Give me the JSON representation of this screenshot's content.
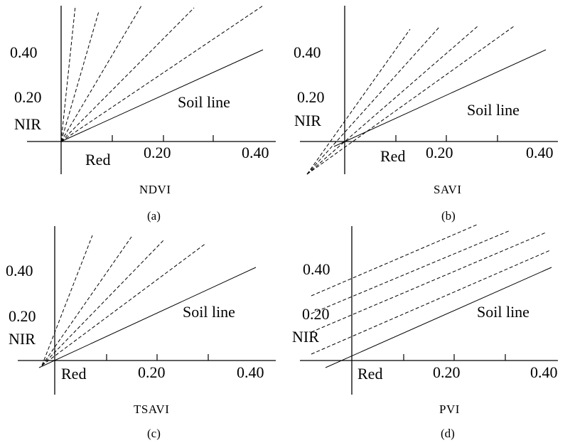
{
  "panels": [
    {
      "id": "a",
      "caption": "(a)",
      "name": "NDVI",
      "x_axis_label": "Red",
      "y_axis_label": "NIR",
      "soil_line_label": "Soil line",
      "x_ticks": [
        "0.20",
        "0.40"
      ],
      "y_ticks": [
        "0.40",
        "0.20"
      ],
      "isolines": "converge at origin"
    },
    {
      "id": "b",
      "caption": "(b)",
      "name": "SAVI",
      "x_axis_label": "Red",
      "y_axis_label": "NIR",
      "soil_line_label": "Soil line",
      "x_ticks": [
        "0.20",
        "0.40"
      ],
      "y_ticks": [
        "0.40",
        "0.20"
      ],
      "isolines": "converge below origin"
    },
    {
      "id": "c",
      "caption": "(c)",
      "name": "TSAVI",
      "x_axis_label": "Red",
      "y_axis_label": "NIR",
      "soil_line_label": "Soil line",
      "x_ticks": [
        "0.20",
        "0.40"
      ],
      "y_ticks": [
        "0.40",
        "0.20"
      ],
      "isolines": "converge on soil line"
    },
    {
      "id": "d",
      "caption": "(d)",
      "name": "PVI",
      "x_axis_label": "Red",
      "y_axis_label": "NIR",
      "soil_line_label": "Soil line",
      "x_ticks": [
        "0.20",
        "0.40"
      ],
      "y_ticks": [
        "0.40",
        "0.20"
      ],
      "isolines": "parallel to soil line"
    }
  ],
  "colors": {
    "line": "#000000",
    "background": "#ffffff"
  }
}
